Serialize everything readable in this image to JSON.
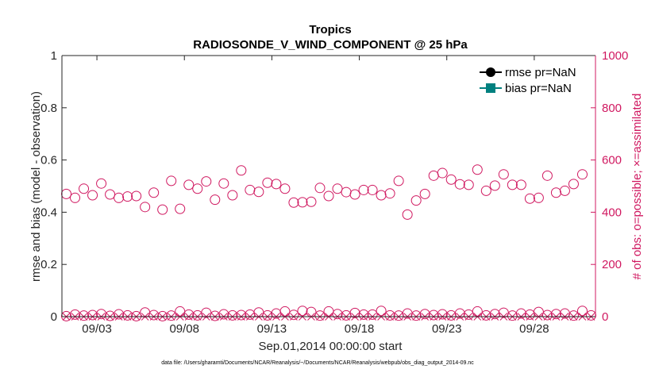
{
  "chart_data": {
    "type": "scatter",
    "title": "Tropics",
    "subtitle": "RADIOSONDE_V_WIND_COMPONENT @ 25 hPa",
    "xlabel": "Sep.01,2014 00:00:00 start",
    "ylabel_left": "rmse and bias (model - observation)",
    "ylabel_right": "# of obs: o=possible; ×=assimilated",
    "footnote": "data file: /Users/gharamti/Documents/NCAR/Reanalysis/~/Documents/NCAR/Reanalysis/webpub/obs_diag_output_2014-09.nc",
    "ylim_left": [
      0,
      1
    ],
    "ylim_right": [
      0,
      1000
    ],
    "xlim": [
      1,
      31.5
    ],
    "left_ticks": [
      "0",
      "0.2",
      "0.4",
      "0.6",
      "0.8",
      "1"
    ],
    "right_ticks": [
      "0",
      "200",
      "400",
      "600",
      "800",
      "1000"
    ],
    "x_ticks": [
      {
        "x": 3,
        "label": "09/03"
      },
      {
        "x": 8,
        "label": "09/08"
      },
      {
        "x": 13,
        "label": "09/13"
      },
      {
        "x": 18,
        "label": "09/18"
      },
      {
        "x": 23,
        "label": "09/23"
      },
      {
        "x": 28,
        "label": "09/28"
      }
    ],
    "legend": [
      {
        "label": "rmse pr=NaN",
        "color": "#000000",
        "marker": "circle"
      },
      {
        "label": "bias pr=NaN",
        "color": "#00807f",
        "marker": "square"
      }
    ],
    "series": [
      {
        "name": "possible",
        "axis": "right",
        "marker": "circle-open",
        "color": "#d01860",
        "x": [
          1.25,
          1.75,
          2.25,
          2.75,
          3.25,
          3.75,
          4.25,
          4.75,
          5.25,
          5.75,
          6.25,
          6.75,
          7.25,
          7.75,
          8.25,
          8.75,
          9.25,
          9.75,
          10.25,
          10.75,
          11.25,
          11.75,
          12.25,
          12.75,
          13.25,
          13.75,
          14.25,
          14.75,
          15.25,
          15.75,
          16.25,
          16.75,
          17.25,
          17.75,
          18.25,
          18.75,
          19.25,
          19.75,
          20.25,
          20.75,
          21.25,
          21.75,
          22.25,
          22.75,
          23.25,
          23.75,
          24.25,
          24.75,
          25.25,
          25.75,
          26.25,
          26.75,
          27.25,
          27.75,
          28.25,
          28.75,
          29.25,
          29.75,
          30.25,
          30.75,
          31.25
        ],
        "values": [
          470,
          455,
          490,
          465,
          510,
          468,
          455,
          460,
          462,
          420,
          475,
          410,
          520,
          413,
          505,
          490,
          518,
          448,
          510,
          465,
          560,
          485,
          478,
          513,
          508,
          490,
          437,
          438,
          440,
          493,
          462,
          490,
          477,
          468,
          485,
          485,
          465,
          472,
          520,
          391,
          445,
          470,
          540,
          550,
          525,
          507,
          505,
          563,
          482,
          502,
          545,
          505,
          505,
          452,
          455,
          540,
          475,
          482,
          508,
          545,
          null
        ]
      },
      {
        "name": "assimilated",
        "axis": "right",
        "marker": "x",
        "color": "#d01860",
        "x": [
          1.25,
          1.75,
          2.25,
          2.75,
          3.25,
          3.75,
          4.25,
          4.75,
          5.25,
          5.75,
          6.25,
          6.75,
          7.25,
          7.75,
          8.25,
          8.75,
          9.25,
          9.75,
          10.25,
          10.75,
          11.25,
          11.75,
          12.25,
          12.75,
          13.25,
          13.75,
          14.25,
          14.75,
          15.25,
          15.75,
          16.25,
          16.75,
          17.25,
          17.75,
          18.25,
          18.75,
          19.25,
          19.75,
          20.25,
          20.75,
          21.25,
          21.75,
          22.25,
          22.75,
          23.25,
          23.75,
          24.25,
          24.75,
          25.25,
          25.75,
          26.25,
          26.75,
          27.25,
          27.75,
          28.25,
          28.75,
          29.25,
          29.75,
          30.25,
          30.75,
          31.25
        ],
        "values": [
          0,
          0,
          0,
          0,
          0,
          0,
          0,
          0,
          0,
          0,
          0,
          0,
          0,
          0,
          0,
          0,
          0,
          0,
          0,
          0,
          0,
          0,
          0,
          0,
          0,
          0,
          0,
          0,
          0,
          0,
          0,
          0,
          0,
          0,
          0,
          0,
          0,
          0,
          0,
          0,
          0,
          0,
          0,
          0,
          0,
          0,
          0,
          0,
          0,
          0,
          0,
          0,
          0,
          0,
          0,
          0,
          0,
          0,
          0,
          0,
          0
        ]
      },
      {
        "name": "possible-near-zero",
        "axis": "right",
        "marker": "circle-open",
        "color": "#d01860",
        "x": [
          1.25,
          1.75,
          2.25,
          2.75,
          3.25,
          3.75,
          4.25,
          4.75,
          5.25,
          5.75,
          6.25,
          6.75,
          7.25,
          7.75,
          8.25,
          8.75,
          9.25,
          9.75,
          10.25,
          10.75,
          11.25,
          11.75,
          12.25,
          12.75,
          13.25,
          13.75,
          14.25,
          14.75,
          15.25,
          15.75,
          16.25,
          16.75,
          17.25,
          17.75,
          18.25,
          18.75,
          19.25,
          19.75,
          20.25,
          20.75,
          21.25,
          21.75,
          22.25,
          22.75,
          23.25,
          23.75,
          24.25,
          24.75,
          25.25,
          25.75,
          26.25,
          26.75,
          27.25,
          27.75,
          28.25,
          28.75,
          29.25,
          29.75,
          30.25,
          30.75,
          31.25
        ],
        "values": [
          2,
          8,
          4,
          6,
          10,
          3,
          9,
          5,
          2,
          16,
          6,
          2,
          4,
          20,
          8,
          5,
          15,
          3,
          9,
          5,
          6,
          8,
          16,
          5,
          12,
          20,
          7,
          22,
          18,
          4,
          20,
          10,
          5,
          14,
          8,
          8,
          22,
          5,
          4,
          12,
          4,
          10,
          6,
          9,
          5,
          12,
          8,
          20,
          5,
          10,
          15,
          4,
          12,
          8,
          18,
          6,
          10,
          12,
          4,
          22,
          5
        ]
      }
    ]
  }
}
